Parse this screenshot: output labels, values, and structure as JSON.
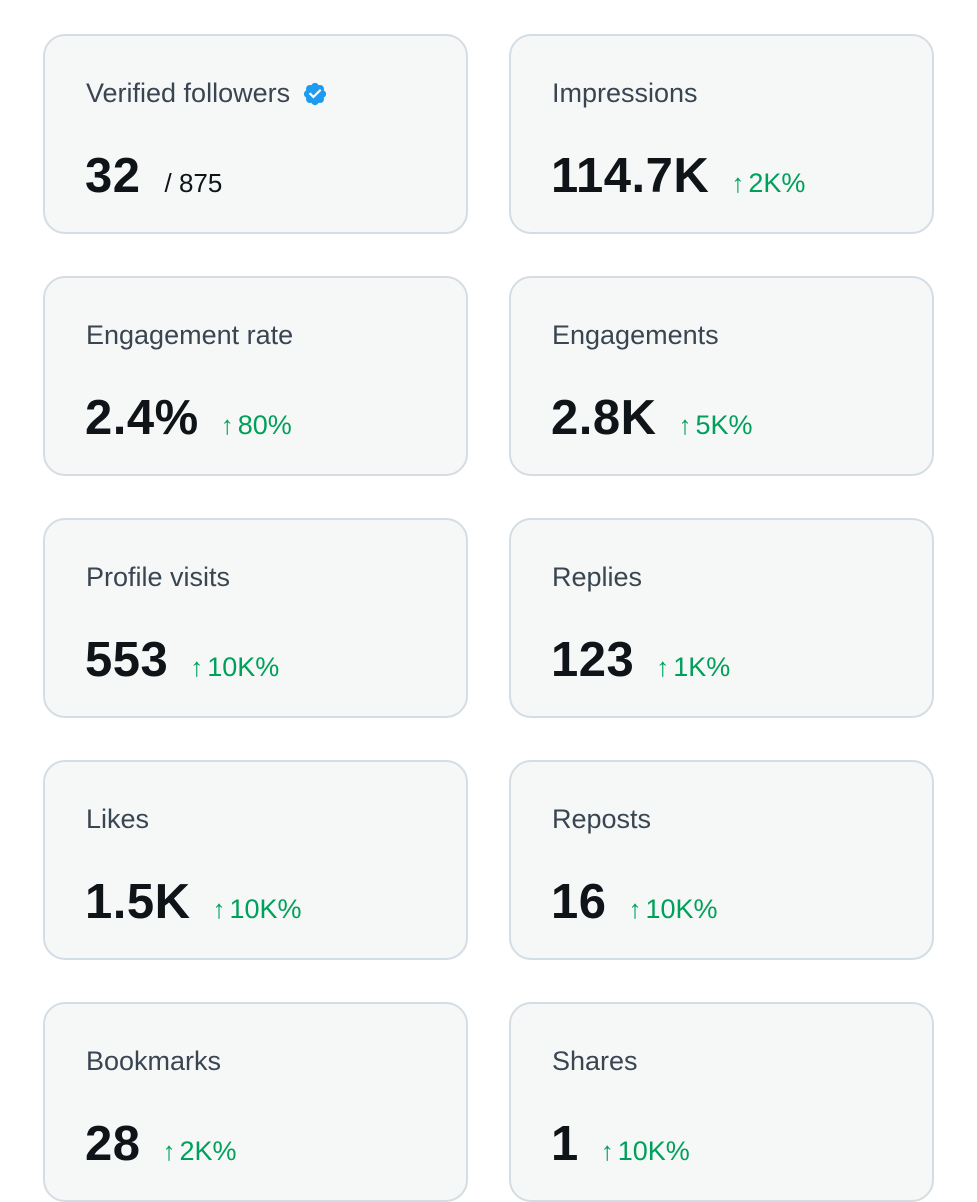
{
  "metrics": [
    {
      "label": "Verified followers",
      "value": "32",
      "total": "/ 875",
      "verified_badge": true
    },
    {
      "label": "Impressions",
      "value": "114.7K",
      "change": "2K%"
    },
    {
      "label": "Engagement rate",
      "value": "2.4%",
      "change": "80%"
    },
    {
      "label": "Engagements",
      "value": "2.8K",
      "change": "5K%"
    },
    {
      "label": "Profile visits",
      "value": "553",
      "change": "10K%"
    },
    {
      "label": "Replies",
      "value": "123",
      "change": "1K%"
    },
    {
      "label": "Likes",
      "value": "1.5K",
      "change": "10K%"
    },
    {
      "label": "Reposts",
      "value": "16",
      "change": "10K%"
    },
    {
      "label": "Bookmarks",
      "value": "28",
      "change": "2K%"
    },
    {
      "label": "Shares",
      "value": "1",
      "change": "10K%"
    }
  ],
  "icons": {
    "verified": "verified-badge-icon",
    "up_arrow": "↑"
  },
  "colors": {
    "positive_change": "#00a05a",
    "verified_badge": "#1d9bf0",
    "card_background": "#f6f8f8",
    "card_border": "#d4dde3"
  }
}
